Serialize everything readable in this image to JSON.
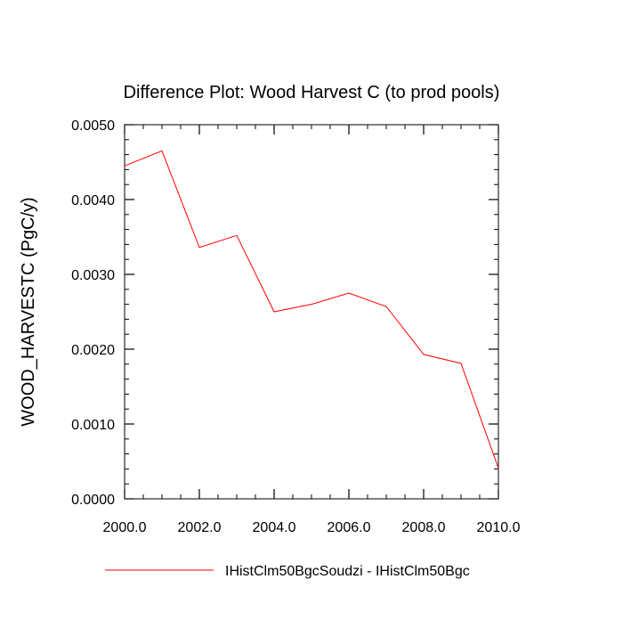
{
  "chart_data": {
    "type": "line",
    "title": "Difference Plot: Wood Harvest C (to prod pools)",
    "xlabel": "",
    "ylabel": "WOOD_HARVESTC  (PgC/y)",
    "xlim": [
      2000,
      2010
    ],
    "ylim": [
      0,
      0.005
    ],
    "x_ticks": [
      2000,
      2002,
      2004,
      2006,
      2008,
      2010
    ],
    "x_tick_labels": [
      "2000.0",
      "2002.0",
      "2004.0",
      "2006.0",
      "2008.0",
      "2010.0"
    ],
    "y_ticks": [
      0,
      0.001,
      0.002,
      0.003,
      0.004,
      0.005
    ],
    "y_tick_labels": [
      "0.0000",
      "0.0010",
      "0.0020",
      "0.0030",
      "0.0040",
      "0.0050"
    ],
    "grid": false,
    "legend_position": "bottom",
    "series": [
      {
        "name": "IHistClm50BgcSoudzi - IHistClm50Bgc",
        "color": "#ff0000",
        "x": [
          2000,
          2001,
          2002,
          2003,
          2004,
          2005,
          2006,
          2007,
          2008,
          2009,
          2010
        ],
        "y": [
          0.00445,
          0.00465,
          0.00336,
          0.00352,
          0.0025,
          0.0026,
          0.00275,
          0.00257,
          0.00193,
          0.00181,
          0.00041
        ]
      }
    ]
  }
}
